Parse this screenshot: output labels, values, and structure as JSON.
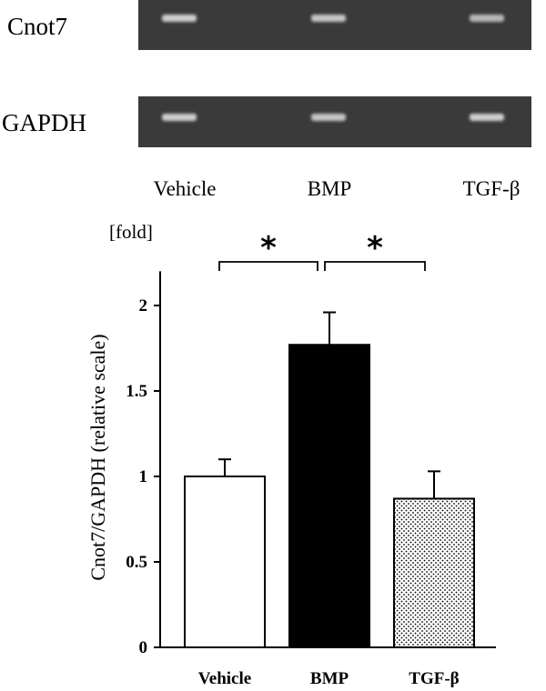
{
  "gel": {
    "rows": [
      {
        "label": "Cnot7",
        "band_intensity": [
          0.85,
          0.8,
          0.72
        ]
      },
      {
        "label": "GAPDH",
        "band_intensity": [
          0.85,
          0.8,
          0.85
        ]
      }
    ],
    "lanes": [
      "Vehicle",
      "BMP",
      "TGF-β"
    ],
    "background_color": "#3a3a3a",
    "band_color": "#e8e8e8"
  },
  "chart_data": {
    "type": "bar",
    "unit_label": "[fold]",
    "ylabel": "Cnot7/GAPDH (relative scale)",
    "xlabel": "",
    "ylim": [
      0,
      2.2
    ],
    "yticks": [
      0,
      0.5,
      1,
      1.5,
      2
    ],
    "ytick_labels": [
      "0",
      "0.5",
      "1",
      "1.5",
      "2"
    ],
    "categories": [
      "Vehicle",
      "BMP",
      "TGF-β"
    ],
    "values": [
      1.0,
      1.77,
      0.87
    ],
    "errors": [
      0.1,
      0.19,
      0.16
    ],
    "fills": [
      "white",
      "black",
      "dotted"
    ],
    "significance": [
      {
        "from": 0,
        "to": 1,
        "label": "*"
      },
      {
        "from": 1,
        "to": 2,
        "label": "*"
      }
    ],
    "grid": false,
    "legend": "none"
  }
}
